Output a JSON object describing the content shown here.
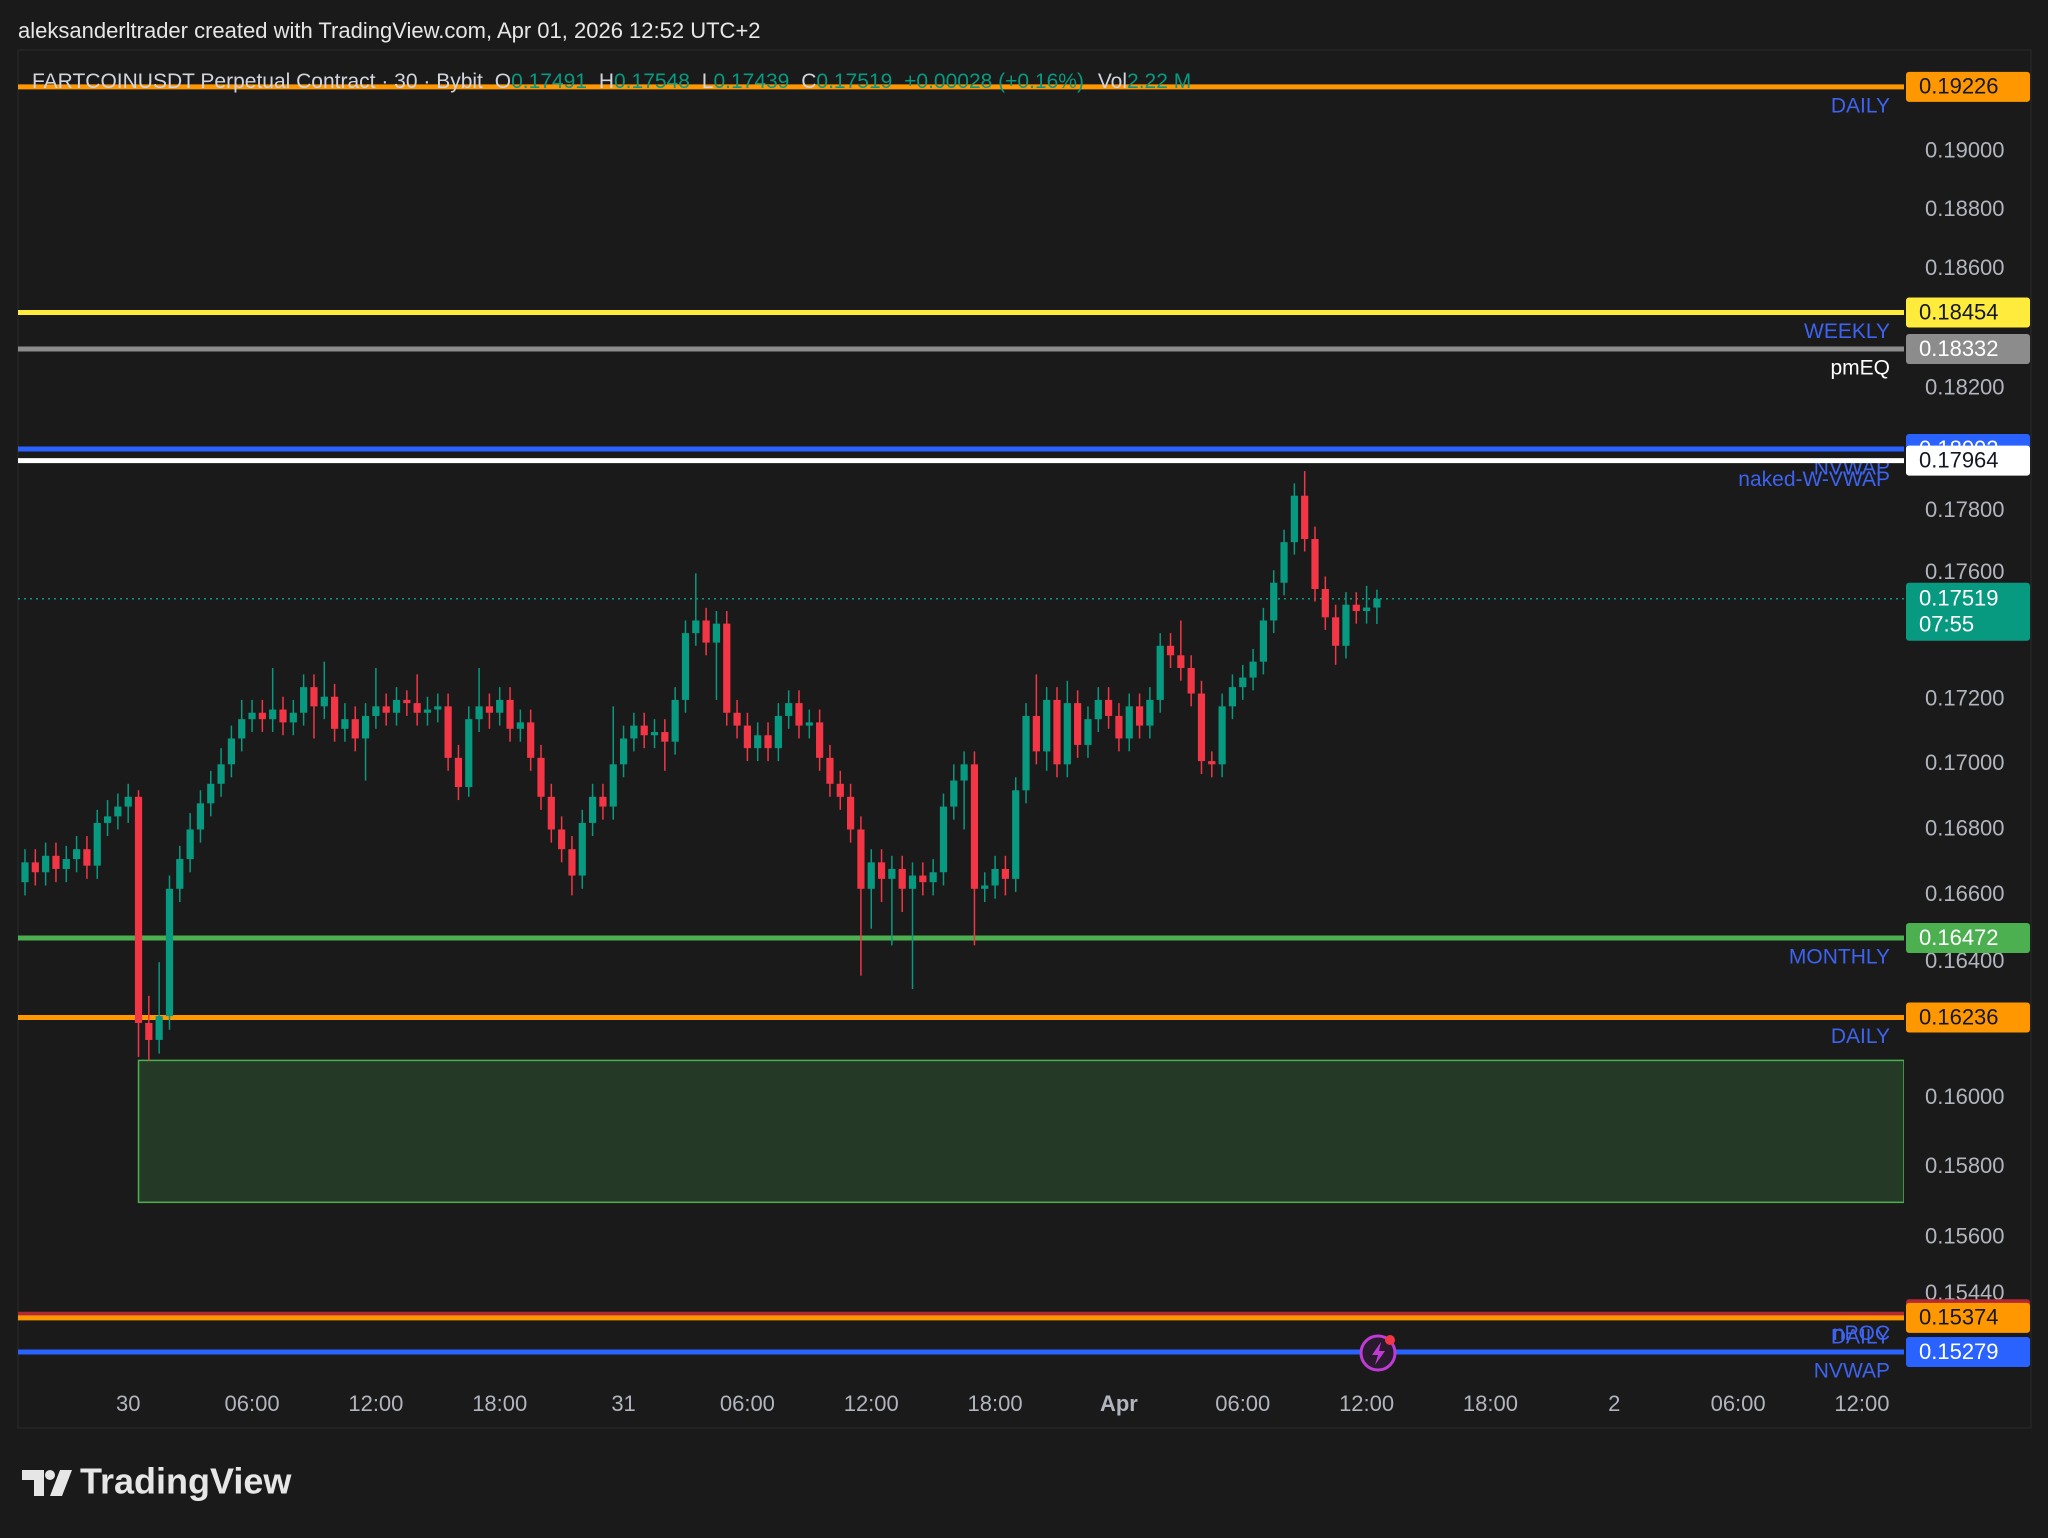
{
  "caption": "aleksanderltrader created with TradingView.com, Apr 01, 2026 12:52 UTC+2",
  "brand": "TradingView",
  "chart_data": {
    "type": "candlestick",
    "header": {
      "symbol": "FARTCOINUSDT Perpetual Contract · 30 · Bybit",
      "o_label": "O",
      "h_label": "H",
      "l_label": "L",
      "c_label": "C",
      "change": "+0.00028 (+0.16%)",
      "vol_label": "Vol",
      "vol": "2.22 M"
    },
    "log_scale": true,
    "grid": false,
    "up_color": "#089981",
    "down_color": "#f23645",
    "ylim": [
      0.15207,
      0.19355
    ],
    "yticks": [
      {
        "value": 0.19,
        "label": "0.19000"
      },
      {
        "value": 0.188,
        "label": "0.18800"
      },
      {
        "value": 0.186,
        "label": "0.18600"
      },
      {
        "value": 0.182,
        "label": "0.18200"
      },
      {
        "value": 0.178,
        "label": "0.17800"
      },
      {
        "value": 0.176,
        "label": "0.17600"
      },
      {
        "value": 0.172,
        "label": "0.17200"
      },
      {
        "value": 0.17,
        "label": "0.17000"
      },
      {
        "value": 0.168,
        "label": "0.16800"
      },
      {
        "value": 0.166,
        "label": "0.16600"
      },
      {
        "value": 0.164,
        "label": "0.16400"
      },
      {
        "value": 0.16,
        "label": "0.16000"
      },
      {
        "value": 0.158,
        "label": "0.15800"
      },
      {
        "value": 0.156,
        "label": "0.15600"
      },
      {
        "value": 0.1544,
        "label": "0.15440"
      }
    ],
    "xticks": [
      {
        "value": 10,
        "label": "30"
      },
      {
        "value": 22,
        "label": "06:00"
      },
      {
        "value": 34,
        "label": "12:00"
      },
      {
        "value": 46,
        "label": "18:00"
      },
      {
        "value": 58,
        "label": "31"
      },
      {
        "value": 70,
        "label": "06:00"
      },
      {
        "value": 82,
        "label": "12:00"
      },
      {
        "value": 94,
        "label": "18:00"
      },
      {
        "value": 106,
        "label": "Apr"
      },
      {
        "value": 118,
        "label": "06:00"
      },
      {
        "value": 130,
        "label": "12:00"
      },
      {
        "value": 142,
        "label": "18:00"
      },
      {
        "value": 154,
        "label": "2"
      },
      {
        "value": 166,
        "label": "06:00"
      },
      {
        "value": 178,
        "label": "12:00"
      }
    ],
    "open": [
      0.1664,
      0.167,
      0.1667,
      0.1672,
      0.1668,
      0.1671,
      0.1674,
      0.1669,
      0.1682,
      0.1684,
      0.1687,
      0.169,
      0.1622,
      0.1617,
      0.1624,
      0.1662,
      0.1671,
      0.168,
      0.1688,
      0.1694,
      0.17,
      0.1708,
      0.1714,
      0.1716,
      0.1714,
      0.1717,
      0.1713,
      0.1716,
      0.1724,
      0.1718,
      0.1721,
      0.1711,
      0.1714,
      0.1708,
      0.1715,
      0.1718,
      0.1716,
      0.172,
      0.1719,
      0.1716,
      0.1717,
      0.1718,
      0.1702,
      0.1693,
      0.1714,
      0.1718,
      0.1716,
      0.172,
      0.1711,
      0.1713,
      0.1702,
      0.169,
      0.168,
      0.1674,
      0.1666,
      0.1682,
      0.169,
      0.1687,
      0.17,
      0.1708,
      0.1712,
      0.1709,
      0.171,
      0.1707,
      0.172,
      0.1741,
      0.1745,
      0.1738,
      0.1744,
      0.1716,
      0.1712,
      0.1705,
      0.1709,
      0.1705,
      0.1715,
      0.1719,
      0.1712,
      0.1713,
      0.1702,
      0.1694,
      0.169,
      0.168,
      0.1662,
      0.167,
      0.1665,
      0.1668,
      0.1662,
      0.1666,
      0.1664,
      0.1667,
      0.1687,
      0.1695,
      0.17,
      0.1662,
      0.1663,
      0.1668,
      0.1665,
      0.1692,
      0.1715,
      0.1704,
      0.172,
      0.17,
      0.1719,
      0.1706,
      0.1714,
      0.172,
      0.1715,
      0.1708,
      0.1718,
      0.1712,
      0.172,
      0.1737,
      0.1734,
      0.173,
      0.1722,
      0.1701,
      0.17,
      0.1718,
      0.1724,
      0.1727,
      0.1732,
      0.1745,
      0.1757,
      0.177,
      0.1785,
      0.1771,
      0.1755,
      0.1746,
      0.1737,
      0.175,
      0.1748,
      0.17491
    ],
    "high": [
      0.1674,
      0.1674,
      0.1676,
      0.1676,
      0.1675,
      0.1678,
      0.1678,
      0.1686,
      0.1689,
      0.1691,
      0.1694,
      0.1692,
      0.163,
      0.164,
      0.1666,
      0.1675,
      0.1685,
      0.1692,
      0.1698,
      0.1705,
      0.1712,
      0.172,
      0.172,
      0.172,
      0.173,
      0.1721,
      0.172,
      0.1728,
      0.1728,
      0.1732,
      0.1725,
      0.1719,
      0.1718,
      0.1719,
      0.173,
      0.1722,
      0.1724,
      0.1723,
      0.1728,
      0.1721,
      0.1722,
      0.1722,
      0.1706,
      0.1718,
      0.173,
      0.1722,
      0.1724,
      0.1724,
      0.1717,
      0.1717,
      0.1706,
      0.1694,
      0.1684,
      0.1678,
      0.1686,
      0.1694,
      0.1694,
      0.1718,
      0.1712,
      0.1716,
      0.1716,
      0.1714,
      0.1714,
      0.1724,
      0.1745,
      0.176,
      0.1749,
      0.1748,
      0.1748,
      0.172,
      0.1716,
      0.1713,
      0.1713,
      0.1719,
      0.1723,
      0.1723,
      0.1717,
      0.1717,
      0.1706,
      0.1698,
      0.1694,
      0.1684,
      0.1674,
      0.1674,
      0.1672,
      0.1672,
      0.167,
      0.167,
      0.1671,
      0.1691,
      0.17,
      0.1704,
      0.1704,
      0.1667,
      0.1672,
      0.1672,
      0.1696,
      0.1719,
      0.1728,
      0.1724,
      0.1724,
      0.1726,
      0.1723,
      0.1718,
      0.1724,
      0.1724,
      0.1719,
      0.1722,
      0.1722,
      0.1724,
      0.1741,
      0.1741,
      0.1745,
      0.1734,
      0.1726,
      0.1704,
      0.1722,
      0.1728,
      0.1731,
      0.1736,
      0.1749,
      0.1761,
      0.1774,
      0.1789,
      0.1793,
      0.1775,
      0.1759,
      0.175,
      0.1754,
      0.1754,
      0.1756,
      0.17548
    ],
    "low": [
      0.166,
      0.1663,
      0.1663,
      0.1664,
      0.1664,
      0.1667,
      0.1665,
      0.1665,
      0.1678,
      0.168,
      0.1682,
      0.1612,
      0.1611,
      0.1613,
      0.162,
      0.1658,
      0.1667,
      0.1676,
      0.1684,
      0.169,
      0.1696,
      0.1704,
      0.171,
      0.171,
      0.171,
      0.1709,
      0.1709,
      0.1712,
      0.1708,
      0.1714,
      0.1707,
      0.1707,
      0.1704,
      0.1695,
      0.1711,
      0.1712,
      0.1712,
      0.1715,
      0.1712,
      0.1712,
      0.1713,
      0.1698,
      0.1689,
      0.169,
      0.171,
      0.1711,
      0.1712,
      0.1707,
      0.1707,
      0.1698,
      0.1686,
      0.1676,
      0.167,
      0.166,
      0.1662,
      0.1678,
      0.1683,
      0.1683,
      0.1696,
      0.1704,
      0.1705,
      0.1705,
      0.1698,
      0.1703,
      0.1716,
      0.1737,
      0.1734,
      0.172,
      0.1712,
      0.1708,
      0.1701,
      0.1701,
      0.1701,
      0.1701,
      0.1711,
      0.1708,
      0.1708,
      0.1698,
      0.169,
      0.1686,
      0.1676,
      0.1636,
      0.165,
      0.1658,
      0.1645,
      0.1655,
      0.1632,
      0.166,
      0.166,
      0.1663,
      0.1683,
      0.168,
      0.1645,
      0.1658,
      0.1659,
      0.166,
      0.1661,
      0.1688,
      0.17,
      0.1698,
      0.1696,
      0.1696,
      0.1702,
      0.1702,
      0.171,
      0.1711,
      0.1704,
      0.1704,
      0.1708,
      0.1708,
      0.1716,
      0.173,
      0.1726,
      0.1718,
      0.1697,
      0.1696,
      0.1696,
      0.1714,
      0.172,
      0.1723,
      0.1728,
      0.1741,
      0.1753,
      0.1766,
      0.1767,
      0.1751,
      0.1742,
      0.1731,
      0.1733,
      0.1744,
      0.1744,
      0.17439
    ],
    "close": [
      0.167,
      0.1667,
      0.1672,
      0.1668,
      0.1671,
      0.1674,
      0.1669,
      0.1682,
      0.1684,
      0.1687,
      0.169,
      0.1622,
      0.1617,
      0.1624,
      0.1662,
      0.1671,
      0.168,
      0.1688,
      0.1694,
      0.17,
      0.1708,
      0.1714,
      0.1716,
      0.1714,
      0.1717,
      0.1713,
      0.1716,
      0.1724,
      0.1718,
      0.1721,
      0.1711,
      0.1714,
      0.1708,
      0.1715,
      0.1718,
      0.1716,
      0.172,
      0.1719,
      0.1716,
      0.1717,
      0.1718,
      0.1702,
      0.1693,
      0.1714,
      0.1718,
      0.1716,
      0.172,
      0.1711,
      0.1713,
      0.1702,
      0.169,
      0.168,
      0.1674,
      0.1666,
      0.1682,
      0.169,
      0.1687,
      0.17,
      0.1708,
      0.1712,
      0.1709,
      0.171,
      0.1707,
      0.172,
      0.1741,
      0.1745,
      0.1738,
      0.1744,
      0.1716,
      0.1712,
      0.1705,
      0.1709,
      0.1705,
      0.1715,
      0.1719,
      0.1712,
      0.1713,
      0.1702,
      0.1694,
      0.169,
      0.168,
      0.1662,
      0.167,
      0.1665,
      0.1668,
      0.1662,
      0.1666,
      0.1664,
      0.1667,
      0.1687,
      0.1695,
      0.17,
      0.1662,
      0.1663,
      0.1668,
      0.1665,
      0.1692,
      0.1715,
      0.1704,
      0.172,
      0.17,
      0.1719,
      0.1706,
      0.1714,
      0.172,
      0.1715,
      0.1708,
      0.1718,
      0.1712,
      0.172,
      0.1737,
      0.1734,
      0.173,
      0.1722,
      0.1701,
      0.17,
      0.1718,
      0.1724,
      0.1727,
      0.1732,
      0.1745,
      0.1757,
      0.177,
      0.1785,
      0.1771,
      0.1755,
      0.1746,
      0.1737,
      0.175,
      0.1748,
      0.17491,
      0.17519
    ],
    "zone": {
      "top": 0.1611,
      "bottom": 0.157,
      "start": 11,
      "color": "#4caf50"
    },
    "last": {
      "value": 0.17519,
      "countdown": "07:55",
      "color": "#089981"
    },
    "levels": [
      {
        "name": "DAILY",
        "value": 0.19226,
        "color": "#ff9800",
        "text_color": "#131722",
        "name_color": "#3d63f0"
      },
      {
        "name": "WEEKLY",
        "value": 0.18454,
        "color": "#ffeb3b",
        "text_color": "#131722",
        "name_color": "#3d63f0"
      },
      {
        "name": "pmEQ",
        "value": 0.18332,
        "color": "#8c8c8c",
        "text_color": "#ffffff",
        "name_color": "#ffffff"
      },
      {
        "name": "NVWAP",
        "value": 0.18002,
        "color": "#2962ff",
        "text_color": "#ffffff",
        "name_color": "#3d63f0"
      },
      {
        "name": "naked-W-VWAP",
        "value": 0.17964,
        "color": "#ffffff",
        "text_color": "#131722",
        "name_color": "#3d63f0"
      },
      {
        "name": "MONTHLY",
        "value": 0.16472,
        "color": "#4caf50",
        "text_color": "#ffffff",
        "name_color": "#3d63f0"
      },
      {
        "name": "DAILY",
        "value": 0.16236,
        "color": "#ff9800",
        "text_color": "#131722",
        "name_color": "#3d63f0"
      },
      {
        "name": "nPOC",
        "value": 0.15384,
        "color": "#b22833",
        "text_color": "#ffffff",
        "name_color": "#3d63f0"
      },
      {
        "name": "DAILY",
        "value": 0.15374,
        "color": "#ff9800",
        "text_color": "#131722",
        "name_color": "#3d63f0"
      },
      {
        "name": "NVWAP",
        "value": 0.15279,
        "color": "#2962ff",
        "text_color": "#ffffff",
        "name_color": "#3d63f0"
      }
    ]
  }
}
